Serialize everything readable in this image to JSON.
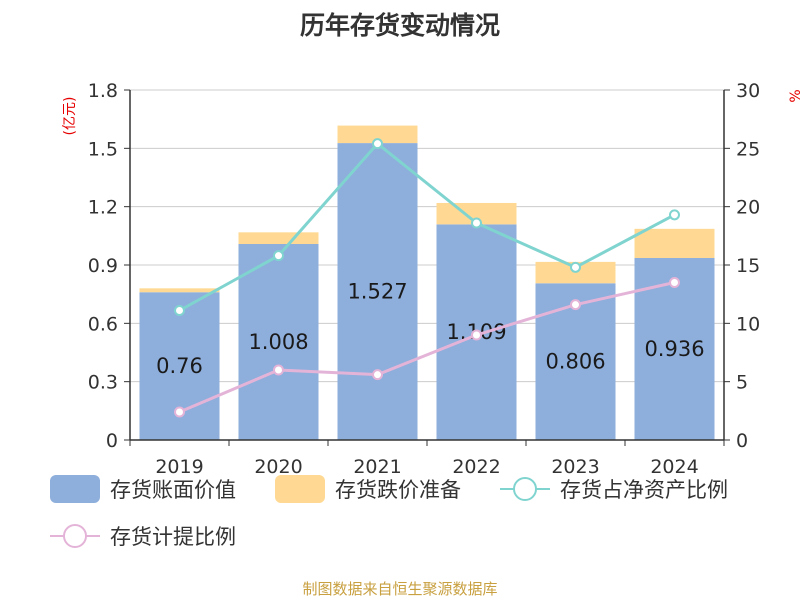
{
  "title": "历年存货变动情况",
  "source": "制图数据来自恒生聚源数据库",
  "left_unit": "(亿元)",
  "right_unit": "%",
  "colors": {
    "book_value": "#8eaedb",
    "provision": "#ffd993",
    "ratio_net_assets": "#80d4d0",
    "provision_ratio": "#e4b4d8",
    "axis": "#333333",
    "grid": "#cccccc"
  },
  "chart_data": {
    "type": "bar",
    "categories": [
      "2019",
      "2020",
      "2021",
      "2022",
      "2023",
      "2024"
    ],
    "left_axis": {
      "min": 0,
      "max": 1.8,
      "ticks": [
        "0",
        "0.3",
        "0.6",
        "0.9",
        "1.2",
        "1.5",
        "1.8"
      ]
    },
    "right_axis": {
      "min": 0,
      "max": 30,
      "ticks": [
        "0",
        "5",
        "10",
        "15",
        "20",
        "25",
        "30"
      ]
    },
    "stacked_bars": [
      {
        "name": "存货账面价值",
        "values": [
          0.76,
          1.008,
          1.527,
          1.109,
          0.806,
          0.936
        ],
        "labels": [
          "0.76",
          "1.008",
          "1.527",
          "1.109",
          "0.806",
          "0.936"
        ]
      },
      {
        "name": "存货跌价准备",
        "values": [
          0.02,
          0.06,
          0.09,
          0.11,
          0.11,
          0.15
        ]
      }
    ],
    "lines": [
      {
        "name": "存货占净资产比例",
        "values": [
          11.1,
          15.8,
          25.4,
          18.6,
          14.8,
          19.3
        ]
      },
      {
        "name": "存货计提比例",
        "values": [
          2.4,
          6.0,
          5.6,
          9.0,
          11.6,
          13.5
        ]
      }
    ],
    "grid": true,
    "legend": "bottom"
  }
}
